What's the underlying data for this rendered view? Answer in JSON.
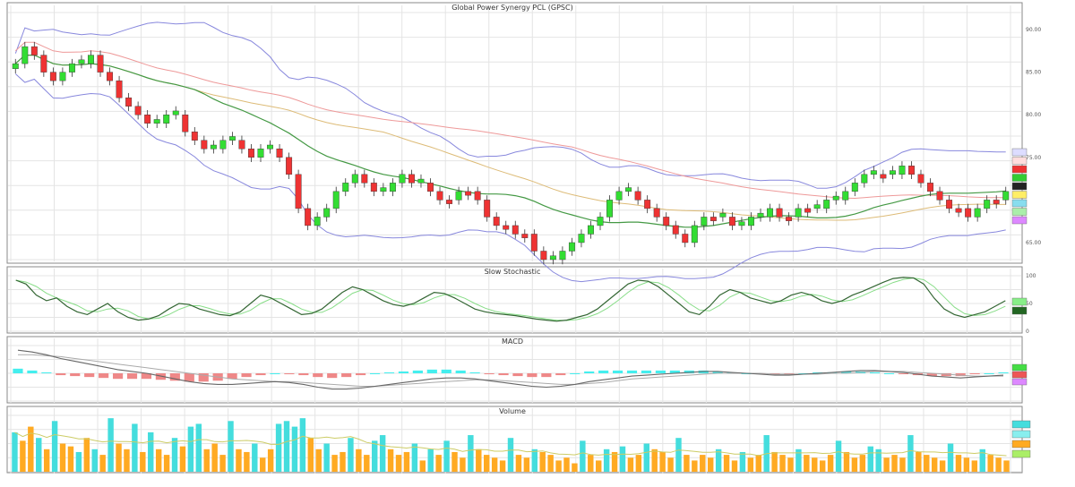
{
  "chart_data": [
    {
      "panel": "price",
      "type": "candlestick",
      "title": "Global Power Synergy PCL (GPSC)",
      "grid": true,
      "y_ticks": [
        {
          "label": "90.00",
          "value": 90
        },
        {
          "label": "85.00",
          "value": 85
        },
        {
          "label": "80.00",
          "value": 80
        },
        {
          "label": "75.00",
          "value": 75
        },
        {
          "label": "65.00",
          "value": 65
        }
      ],
      "ylim": [
        63,
        92
      ],
      "close": [
        86,
        88,
        87,
        85,
        84,
        85,
        86,
        86,
        87,
        85,
        84,
        82,
        81,
        80,
        79,
        79,
        80,
        80,
        78,
        77,
        76,
        76,
        77,
        77,
        76,
        75,
        76,
        76,
        75,
        73,
        69,
        67,
        68,
        69,
        71,
        72,
        73,
        72,
        71,
        71,
        72,
        73,
        72,
        72,
        71,
        70,
        70,
        71,
        71,
        70,
        68,
        67,
        67,
        66,
        66,
        64,
        63,
        63,
        64,
        65,
        66,
        67,
        68,
        70,
        71,
        71,
        70,
        69,
        68,
        67,
        66,
        65,
        67,
        68,
        68,
        68,
        67,
        67,
        68,
        68,
        69,
        68,
        68,
        69,
        69,
        69,
        70,
        70,
        71,
        72,
        73,
        73,
        73,
        73,
        74,
        73,
        72,
        71,
        70,
        69,
        69,
        68,
        69,
        70,
        70,
        71
      ]
    },
    {
      "panel": "stochastic",
      "type": "line",
      "title": "Slow Stochastic",
      "y_ticks": [
        {
          "label": "100",
          "value": 100
        },
        {
          "label": "50",
          "value": 50
        },
        {
          "label": "0",
          "value": 0
        }
      ],
      "ylim": [
        0,
        100
      ],
      "k": [
        92,
        85,
        65,
        55,
        60,
        45,
        35,
        30,
        40,
        50,
        35,
        25,
        20,
        22,
        28,
        40,
        50,
        48,
        40,
        35,
        30,
        28,
        35,
        50,
        65,
        60,
        50,
        40,
        30,
        32,
        40,
        55,
        70,
        80,
        75,
        65,
        55,
        48,
        45,
        50,
        60,
        70,
        68,
        60,
        50,
        40,
        35,
        32,
        30,
        28,
        25,
        22,
        20,
        18,
        20,
        25,
        30,
        40,
        55,
        70,
        85,
        92,
        90,
        80,
        65,
        50,
        35,
        30,
        45,
        65,
        75,
        70,
        60,
        55,
        50,
        55,
        65,
        70,
        65,
        55,
        50,
        55,
        65,
        72,
        80,
        88,
        95,
        97,
        96,
        85,
        60,
        40,
        30,
        25,
        30,
        35,
        45,
        55
      ]
    },
    {
      "panel": "macd",
      "type": "line",
      "title": "MACD",
      "ylim": [
        -3,
        3
      ],
      "macd": [
        2.5,
        2.3,
        2,
        1.6,
        1.3,
        1,
        0.7,
        0.4,
        0.2,
        0,
        -0.3,
        -0.6,
        -0.9,
        -1.1,
        -1.2,
        -1.2,
        -1.1,
        -1,
        -0.9,
        -1,
        -1.2,
        -1.5,
        -1.7,
        -1.7,
        -1.6,
        -1.4,
        -1.2,
        -1,
        -0.8,
        -0.6,
        -0.5,
        -0.5,
        -0.6,
        -0.8,
        -1,
        -1.2,
        -1.4,
        -1.5,
        -1.4,
        -1.2,
        -0.9,
        -0.7,
        -0.5,
        -0.3,
        -0.2,
        -0.1,
        0,
        0.1,
        0.2,
        0.2,
        0.1,
        0,
        -0.1,
        -0.2,
        -0.2,
        -0.1,
        0,
        0.1,
        0.2,
        0.3,
        0.3,
        0.2,
        0.1,
        -0.1,
        -0.3,
        -0.4,
        -0.5,
        -0.4,
        -0.3,
        -0.2
      ],
      "signal": [
        2,
        2,
        1.9,
        1.8,
        1.6,
        1.4,
        1.2,
        1,
        0.8,
        0.6,
        0.4,
        0.2,
        0,
        -0.2,
        -0.4,
        -0.6,
        -0.7,
        -0.8,
        -0.9,
        -0.9,
        -1,
        -1.1,
        -1.2,
        -1.3,
        -1.4,
        -1.4,
        -1.3,
        -1.2,
        -1.1,
        -1,
        -0.9,
        -0.8,
        -0.7,
        -0.7,
        -0.8,
        -0.9,
        -1,
        -1.1,
        -1.2,
        -1.2,
        -1.1,
        -1,
        -0.8,
        -0.6,
        -0.5,
        -0.4,
        -0.3,
        -0.2,
        -0.1,
        0,
        0,
        0,
        0,
        -0.1,
        -0.1,
        -0.1,
        -0.1,
        0,
        0,
        0.1,
        0.2,
        0.2,
        0.2,
        0.1,
        0,
        -0.1,
        -0.2,
        -0.3,
        -0.3,
        -0.3
      ],
      "tags": [
        "",
        "",
        ""
      ]
    },
    {
      "panel": "volume",
      "type": "bar",
      "title": "Volume",
      "ylim": [
        0,
        100
      ],
      "values": [
        70,
        55,
        80,
        60,
        40,
        90,
        50,
        45,
        35,
        60,
        40,
        30,
        95,
        50,
        40,
        85,
        35,
        70,
        40,
        30,
        60,
        45,
        80,
        85,
        40,
        50,
        30,
        90,
        40,
        35,
        50,
        25,
        40,
        85,
        90,
        80,
        95,
        60,
        40,
        50,
        30,
        35,
        60,
        40,
        30,
        55,
        65,
        40,
        30,
        35,
        50,
        20,
        40,
        30,
        55,
        35,
        25,
        65,
        40,
        30,
        25,
        20,
        60,
        30,
        25,
        40,
        35,
        30,
        20,
        25,
        15,
        55,
        30,
        20,
        40,
        35,
        45,
        25,
        30,
        50,
        40,
        35,
        25,
        60,
        30,
        20,
        30,
        25,
        40,
        30,
        20,
        35,
        25,
        30,
        65,
        35,
        30,
        25,
        40,
        30,
        25,
        20,
        30,
        55,
        35,
        25,
        30,
        45,
        40,
        25,
        30,
        25,
        65,
        35,
        30,
        25,
        20,
        50,
        30,
        25,
        20,
        40,
        30,
        25,
        20
      ],
      "up": [
        true,
        false,
        false,
        true,
        false,
        true,
        false,
        false,
        true,
        false,
        true,
        false,
        true,
        false,
        false,
        true,
        false,
        true,
        false,
        false,
        true,
        false,
        true,
        true,
        false,
        false,
        false,
        true,
        false,
        false,
        true,
        false,
        false,
        true,
        true,
        true,
        true,
        false,
        false,
        true,
        false,
        false,
        true,
        false,
        false,
        true,
        true,
        false,
        false,
        false,
        true,
        false,
        true,
        false,
        true,
        false,
        false,
        true,
        false,
        false,
        false,
        false,
        true,
        false,
        false,
        true,
        false,
        false,
        false,
        false,
        false,
        true,
        false,
        false,
        true,
        false,
        true,
        false,
        false,
        true,
        false,
        false,
        false,
        true,
        false,
        false,
        false,
        false,
        true,
        false,
        false,
        true,
        false,
        false,
        true,
        false,
        false,
        false,
        true,
        false,
        false,
        false,
        false,
        true,
        false,
        false,
        false,
        true,
        true,
        false,
        false,
        false,
        true,
        false,
        false,
        false,
        false,
        true,
        false,
        false,
        false,
        true,
        false,
        false,
        false
      ]
    }
  ],
  "colors": {
    "up": "#33dd33",
    "down": "#ee3333",
    "vol_up": "#44dddd",
    "vol_down": "#ffaa22",
    "stoch_k": "#336633",
    "stoch_d": "#88dd88",
    "macd": "#444444",
    "signal": "#cc4444",
    "bb": "#8888dd",
    "ma_long": "#ee9999",
    "ma_mid": "#ddbb77",
    "ma_short": "#449944",
    "grid": "#e4e4e4"
  }
}
